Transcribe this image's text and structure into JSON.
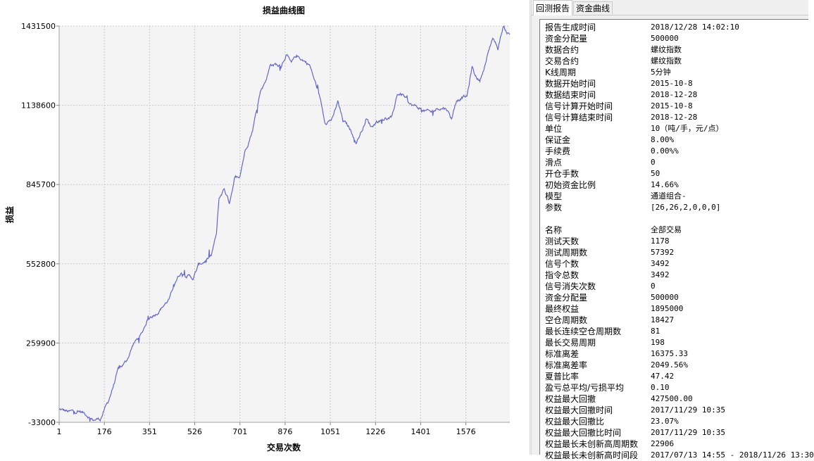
{
  "tabs": [
    {
      "label": "回测报告",
      "active": true
    },
    {
      "label": "资金曲线",
      "active": false
    }
  ],
  "chart_data": {
    "type": "line",
    "title": "损益曲线图",
    "xlabel": "交易次数",
    "ylabel": "损益",
    "xlim": [
      1,
      1746
    ],
    "ylim": [
      -33000,
      1431500
    ],
    "xticks": [
      1,
      176,
      351,
      526,
      701,
      876,
      1051,
      1226,
      1401,
      1576
    ],
    "xtick_labels": [
      "1",
      "176",
      "351",
      "526",
      "701",
      "876",
      "1051",
      "1226",
      "1401",
      "1576"
    ],
    "yticks": [
      -33000,
      259900,
      552800,
      845700,
      1138600,
      1431500
    ],
    "ytick_labels": [
      "-33000",
      "259900",
      "552800",
      "845700",
      "1138600",
      "1431500"
    ],
    "grid": true,
    "line_color": "#6666cc",
    "plot_background": "#f4f4f4",
    "series": [
      {
        "x": [
          1,
          40,
          80,
          110,
          130,
          160,
          190,
          230,
          260,
          290,
          320,
          340,
          351,
          380,
          400,
          430,
          450,
          470,
          480,
          520,
          540,
          560,
          590,
          610,
          620,
          640,
          660,
          680,
          700,
          720,
          750,
          780,
          800,
          820,
          840,
          860,
          880,
          900,
          920,
          940,
          970,
          990,
          1010,
          1030,
          1060,
          1080,
          1100,
          1120,
          1140,
          1150,
          1170,
          1190,
          1210,
          1230,
          1260,
          1290,
          1310,
          1330,
          1360,
          1390,
          1410,
          1440,
          1470,
          1500,
          1520,
          1540,
          1560,
          1580,
          1600,
          1610,
          1630,
          1650,
          1680,
          1700,
          1720,
          1735,
          1746
        ],
        "y": [
          14000,
          4000,
          8000,
          -5000,
          -24000,
          -20000,
          40000,
          160000,
          190000,
          260000,
          290000,
          340000,
          356000,
          375000,
          395000,
          425000,
          490000,
          520000,
          520000,
          500000,
          545000,
          560000,
          580000,
          660000,
          790000,
          830000,
          780000,
          870000,
          880000,
          970000,
          1050000,
          1190000,
          1230000,
          1290000,
          1290000,
          1280000,
          1330000,
          1290000,
          1320000,
          1310000,
          1290000,
          1230000,
          1170000,
          1080000,
          1090000,
          1150000,
          1080000,
          1060000,
          1030000,
          1000000,
          1040000,
          1090000,
          1060000,
          1080000,
          1090000,
          1090000,
          1180000,
          1180000,
          1140000,
          1130000,
          1120000,
          1110000,
          1130000,
          1130000,
          1090000,
          1160000,
          1170000,
          1170000,
          1280000,
          1250000,
          1230000,
          1290000,
          1390000,
          1350000,
          1430000,
          1410000,
          1400000
        ]
      }
    ]
  },
  "report": {
    "rows": [
      {
        "key": "报告生成时间",
        "value": "2018/12/28 14:02:10"
      },
      {
        "key": "资金分配量",
        "value": "500000"
      },
      {
        "key": "数据合约",
        "value": "螺纹指数"
      },
      {
        "key": "交易合约",
        "value": "螺纹指数"
      },
      {
        "key": "K线周期",
        "value": "5分钟"
      },
      {
        "key": "数据开始时间",
        "value": "2015-10-8"
      },
      {
        "key": "数据结束时间",
        "value": "2018-12-28"
      },
      {
        "key": "信号计算开始时间",
        "value": "2015-10-8"
      },
      {
        "key": "信号计算结束时间",
        "value": "2018-12-28"
      },
      {
        "key": "单位",
        "value": "10（吨/手，元/点）"
      },
      {
        "key": "保证金",
        "value": "8.00%"
      },
      {
        "key": "手续费",
        "value": "0.00%%"
      },
      {
        "key": "滑点",
        "value": "0"
      },
      {
        "key": "开仓手数",
        "value": "50"
      },
      {
        "key": "初始资金比例",
        "value": "14.66%"
      },
      {
        "key": "模型",
        "value": "通道组合-"
      },
      {
        "key": "参数",
        "value": "[26,26,2,0,0,0]"
      },
      {
        "key": "",
        "value": ""
      },
      {
        "key": "名称",
        "value": "全部交易"
      },
      {
        "key": "测试天数",
        "value": "1178"
      },
      {
        "key": "测试周期数",
        "value": "57392"
      },
      {
        "key": "信号个数",
        "value": "3492"
      },
      {
        "key": "指令总数",
        "value": "3492"
      },
      {
        "key": "信号消失次数",
        "value": "0"
      },
      {
        "key": "资金分配量",
        "value": "500000"
      },
      {
        "key": "最终权益",
        "value": "1895000"
      },
      {
        "key": "空仓周期数",
        "value": "18427"
      },
      {
        "key": "最长连续空仓周期数",
        "value": "81"
      },
      {
        "key": "最长交易周期",
        "value": "198"
      },
      {
        "key": "标准离差",
        "value": "16375.33"
      },
      {
        "key": "标准离差率",
        "value": "2049.56%"
      },
      {
        "key": "夏普比率",
        "value": "47.42"
      },
      {
        "key": "盈亏总平均/亏损平均",
        "value": "0.10"
      },
      {
        "key": "权益最大回撤",
        "value": "427500.00"
      },
      {
        "key": "权益最大回撤时间",
        "value": "2017/11/29 10:35"
      },
      {
        "key": "权益最大回撤比",
        "value": "23.07%"
      },
      {
        "key": "权益最大回撤比时间",
        "value": "2017/11/29 10:35"
      },
      {
        "key": "权益最长未创新高周期数",
        "value": "22906"
      },
      {
        "key": "权益最长未创新高时间段",
        "value": "2017/07/13 14:55 - 2018/11/26 13:30"
      }
    ]
  }
}
